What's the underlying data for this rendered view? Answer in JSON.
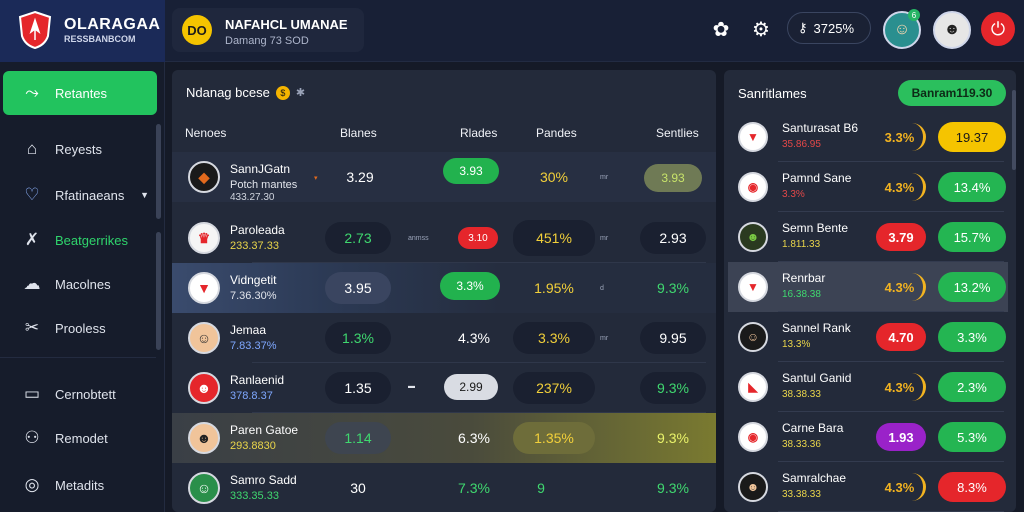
{
  "colors": {
    "accent_green": "#22c35e",
    "danger_red": "#e5262b",
    "gold": "#f5c400",
    "panel": "#232a3a",
    "header": "#182036"
  },
  "brand": {
    "title": "OLARAGAA",
    "subtitle": "RESSBANBCOM",
    "logo_icon": "shield-icon"
  },
  "league": {
    "logo_text": "DO",
    "title": "NAFAHCL UMANAE",
    "subtitle": "Damang 73 SOD"
  },
  "header": {
    "balance": "3725%",
    "balance_icon": "key-icon",
    "avatar_badge": "6",
    "icons": [
      "gear-icon",
      "settings-icon",
      "user-avatar",
      "player-avatar",
      "power-icon"
    ]
  },
  "sidebar": {
    "items": [
      {
        "label": "Retantes",
        "icon": "trend-icon",
        "active": true
      },
      {
        "label": "Reyests",
        "icon": "home-icon"
      },
      {
        "label": "Rfatinaeans",
        "icon": "heart-icon",
        "has_chevron": true
      },
      {
        "label": "Beatgerrikes",
        "icon": "cross-tools-icon",
        "green": true
      },
      {
        "label": "Macolnes",
        "icon": "cloud-icon"
      },
      {
        "label": "Prooless",
        "icon": "tools-icon"
      },
      {
        "label": "Cernobtett",
        "icon": "screen-icon"
      },
      {
        "label": "Remodet",
        "icon": "people-icon"
      },
      {
        "label": "Metadits",
        "icon": "compass-icon"
      }
    ]
  },
  "main": {
    "title": "Ndanag bcese",
    "title_icon": "coin-icon",
    "columns": [
      "Nenoes",
      "Blanes",
      "Rlades",
      "Pandes",
      "Sentlies"
    ],
    "rows": [
      {
        "name": "SannJGatn",
        "sub": "Potch mantes",
        "sub2": "433.27.30",
        "c1": "3.29",
        "c2": "3.93",
        "c3": "30%",
        "c4": "3.93",
        "small_a": "▾",
        "small_b": "mr"
      },
      {
        "name": "Paroleada",
        "sub": "233.37.33",
        "c1": "2.73",
        "c2": "3.10",
        "c3": "451%",
        "c4": "2.93",
        "small_a": "anmss",
        "small_b": "mr"
      },
      {
        "name": "Vidngetit",
        "sub": "7.36.30%",
        "c1": "3.95",
        "c2": "3.3%",
        "c3": "1.95%",
        "c4": "9.3%",
        "small_b": "d"
      },
      {
        "name": "Jemaa",
        "sub": "7.83.37%",
        "c1": "1.3%",
        "c2": "4.3%",
        "c3": "3.3%",
        "c4": "9.95",
        "small_b": "mr"
      },
      {
        "name": "Ranlaenid",
        "sub": "378.8.37",
        "c1": "1.35",
        "c2": "2.99",
        "c3": "237%",
        "c4": "9.3%",
        "small_a": "▬"
      },
      {
        "name": "Paren Gatoe",
        "sub": "293.8830",
        "c1": "1.14",
        "c2": "6.3%",
        "c3": "1.35%",
        "c4": "9.3%"
      },
      {
        "name": "Samro Sadd",
        "sub": "333.35.33",
        "c1": "30",
        "c2": "7.3%",
        "c3": "9",
        "c4": "9.3%"
      }
    ]
  },
  "side": {
    "title": "Sanritlames",
    "button": "Banram119.30",
    "rows": [
      {
        "name": "Santurasat B6",
        "sub": "35.86.95",
        "pct": "3.3%",
        "val": "19.37",
        "pct_color": "#f2b320",
        "val_bg": "#f5c400",
        "val_fg": "#1a1a1a",
        "sub_color": "#e34848"
      },
      {
        "name": "Pamnd Sane",
        "sub": "3.3%",
        "pct": "4.3%",
        "val": "13.4%",
        "pct_color": "#f2b320",
        "val_bg": "#24b552",
        "val_fg": "#ffffff",
        "sub_color": "#e34848"
      },
      {
        "name": "Semn Bente",
        "sub": "1.811.33",
        "pct": "3.79",
        "val": "15.7%",
        "pct_color": "#ffffff",
        "pct_bg": "#e5262b",
        "val_bg": "#24b552",
        "val_fg": "#ffffff",
        "sub_color": "#e9d54a"
      },
      {
        "name": "Renrbar",
        "sub": "16.38.38",
        "pct": "4.3%",
        "val": "13.2%",
        "pct_color": "#f2b320",
        "val_bg": "#24b552",
        "val_fg": "#ffffff",
        "sub_color": "#3fd86f"
      },
      {
        "name": "Sannel Rank",
        "sub": "13.3%",
        "pct": "4.70",
        "val": "3.3%",
        "pct_color": "#ffffff",
        "pct_bg": "#e5262b",
        "val_bg": "#24b552",
        "val_fg": "#ffffff",
        "sub_color": "#e9d54a"
      },
      {
        "name": "Santul Ganid",
        "sub": "38.38.33",
        "pct": "4.3%",
        "val": "2.3%",
        "pct_color": "#f2b320",
        "val_bg": "#24b552",
        "val_fg": "#ffffff",
        "sub_color": "#e9d54a"
      },
      {
        "name": "Carne Bara",
        "sub": "38.33.36",
        "pct": "1.93",
        "val": "5.3%",
        "pct_color": "#ffffff",
        "pct_bg": "#9a22c9",
        "val_bg": "#24b552",
        "val_fg": "#ffffff",
        "sub_color": "#e9d54a"
      },
      {
        "name": "Samralchae",
        "sub": "33.38.33",
        "pct": "4.3%",
        "val": "8.3%",
        "pct_color": "#f2b320",
        "val_bg": "#e5262b",
        "val_fg": "#ffffff",
        "sub_color": "#e9d54a"
      }
    ]
  }
}
